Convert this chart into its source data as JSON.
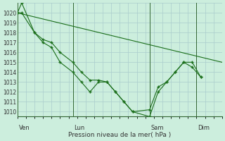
{
  "background_color": "#cceedd",
  "grid_color": "#aacccc",
  "line_color": "#1a6e1a",
  "marker_color": "#1a6e1a",
  "xlabel_text": "Pression niveau de la mer( hPa )",
  "xlabels": [
    "Ven",
    "Lun",
    "Sam",
    "Dim"
  ],
  "ylim": [
    1009.5,
    1021.0
  ],
  "yticks": [
    1010,
    1011,
    1012,
    1013,
    1014,
    1015,
    1016,
    1017,
    1018,
    1019,
    1020
  ],
  "xlim": [
    0,
    24
  ],
  "vline_x": [
    0,
    6.5,
    15.5,
    21.0
  ],
  "series1_x": [
    0,
    0.5,
    2,
    3,
    4,
    5,
    6.5,
    7.5,
    8.5,
    9.5,
    10.5,
    11.5,
    12.5,
    13.5,
    15.5,
    16.5,
    17.5,
    18.5,
    19.5,
    20.5,
    21.5
  ],
  "series1_y": [
    1020.0,
    1020.0,
    1018.0,
    1017.3,
    1017.0,
    1016.0,
    1015.0,
    1014.0,
    1013.2,
    1013.2,
    1013.0,
    1012.0,
    1011.0,
    1010.0,
    1010.2,
    1012.5,
    1013.0,
    1014.0,
    1015.0,
    1014.5,
    1013.5
  ],
  "series2_x": [
    0,
    0.5,
    2,
    3,
    4,
    5,
    6.5,
    7.5,
    8.5,
    9.5,
    10.5,
    11.5,
    12.5,
    13.5,
    15.5,
    16.5,
    17.5,
    18.5,
    19.5,
    20.5,
    21.5
  ],
  "series2_y": [
    1020.0,
    1021.0,
    1018.0,
    1017.0,
    1016.5,
    1015.0,
    1014.0,
    1013.0,
    1012.0,
    1013.0,
    1013.0,
    1012.0,
    1011.0,
    1010.0,
    1009.5,
    1012.0,
    1013.0,
    1014.0,
    1015.0,
    1015.0,
    1013.5
  ],
  "series3_x": [
    0,
    24
  ],
  "series3_y": [
    1020.0,
    1015.0
  ],
  "n_x_minor": 24
}
